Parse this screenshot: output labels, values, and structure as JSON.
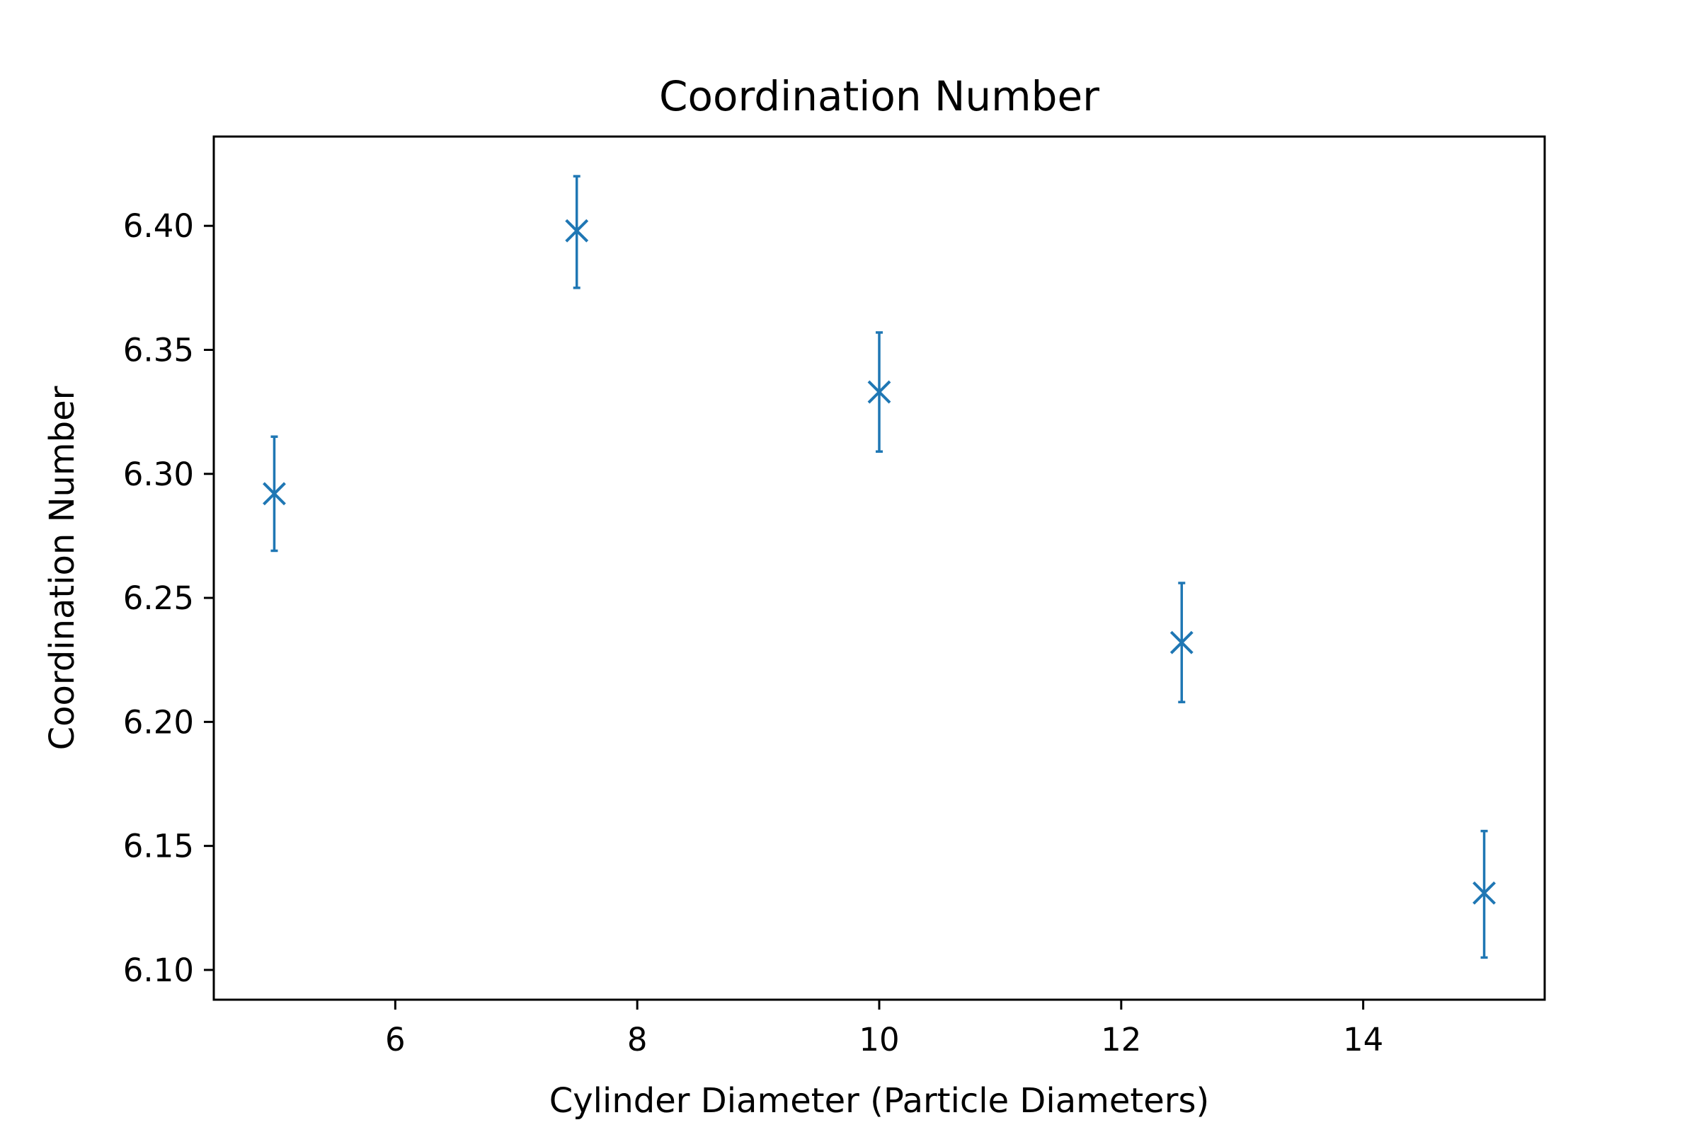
{
  "chart_data": {
    "type": "scatter",
    "title": "Coordination Number",
    "xlabel": "Cylinder Diameter (Particle Diameters)",
    "ylabel": "Coordination Number",
    "xlim": [
      4.5,
      15.5
    ],
    "ylim": [
      6.088,
      6.436
    ],
    "xticks": [
      6,
      8,
      10,
      12,
      14
    ],
    "xtick_labels": [
      "6",
      "8",
      "10",
      "12",
      "14"
    ],
    "yticks": [
      6.1,
      6.15,
      6.2,
      6.25,
      6.3,
      6.35,
      6.4
    ],
    "ytick_labels": [
      "6.10",
      "6.15",
      "6.20",
      "6.25",
      "6.30",
      "6.35",
      "6.40"
    ],
    "grid": false,
    "marker": "x",
    "color": "#1f77b4",
    "series": [
      {
        "x": [
          5,
          7.5,
          10,
          12.5,
          15
        ],
        "y": [
          6.292,
          6.398,
          6.333,
          6.232,
          6.131
        ],
        "yerr_low": [
          6.269,
          6.375,
          6.309,
          6.208,
          6.105
        ],
        "yerr_high": [
          6.315,
          6.42,
          6.357,
          6.256,
          6.156
        ]
      }
    ]
  }
}
